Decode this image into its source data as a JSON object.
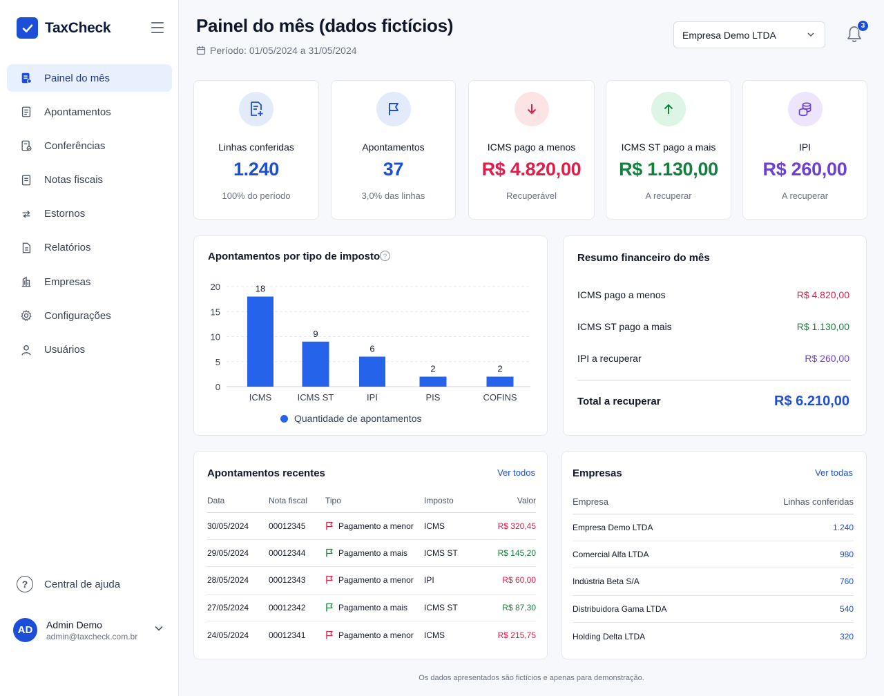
{
  "app": {
    "name": "TaxCheck"
  },
  "sidebar": {
    "items": [
      {
        "label": "Painel do mês",
        "icon": "dashboard-doc-icon",
        "active": true
      },
      {
        "label": "Apontamentos",
        "icon": "document-icon"
      },
      {
        "label": "Conferências",
        "icon": "document-check-icon"
      },
      {
        "label": "Notas fiscais",
        "icon": "invoice-icon"
      },
      {
        "label": "Estornos",
        "icon": "reverse-arrows-icon"
      },
      {
        "label": "Relatórios",
        "icon": "report-icon"
      },
      {
        "label": "Empresas",
        "icon": "building-icon"
      },
      {
        "label": "Configurações",
        "icon": "gear-icon"
      },
      {
        "label": "Usuários",
        "icon": "user-icon"
      }
    ],
    "help": "Central de ajuda",
    "user": {
      "initials": "AD",
      "name": "Admin Demo",
      "email": "admin@taxcheck.com.br"
    }
  },
  "header": {
    "title": "Painel do mês (dados fictícios)",
    "period": "Período: 01/05/2024 a 31/05/2024",
    "company": "Empresa Demo LTDA",
    "notifications": "3"
  },
  "kpis": [
    {
      "label": "Linhas conferidas",
      "value": "1.240",
      "sub": "100% do período",
      "color": "#1d4ed8",
      "bg": "#e3ebfb",
      "icon": "document-add-icon"
    },
    {
      "label": "Apontamentos",
      "value": "37",
      "sub": "3,0% das linhas",
      "color": "#1d4ed8",
      "bg": "#e3ebfb",
      "icon": "flag-icon"
    },
    {
      "label": "ICMS pago a menos",
      "value": "R$ 4.820,00",
      "sub": "Recuperável",
      "color": "#e11d48",
      "bg": "#fde4e4",
      "icon": "arrow-down-icon"
    },
    {
      "label": "ICMS ST pago a mais",
      "value": "R$ 1.130,00",
      "sub": "A recuperar",
      "color": "#15803d",
      "bg": "#dcf5e4",
      "icon": "arrow-up-icon"
    },
    {
      "label": "IPI",
      "value": "R$ 260,00",
      "sub": "A recuperar",
      "color": "#6d3fd8",
      "bg": "#ece5fb",
      "icon": "coins-icon"
    }
  ],
  "chart_card": {
    "title": "Apontamentos por tipo de imposto"
  },
  "chart_data": {
    "type": "bar",
    "categories": [
      "ICMS",
      "ICMS ST",
      "IPI",
      "PIS",
      "COFINS"
    ],
    "series": [
      {
        "name": "Quantidade de apontamentos",
        "values": [
          18,
          9,
          6,
          2,
          2
        ]
      }
    ],
    "ylim": [
      0,
      20
    ],
    "yticks": [
      0,
      5,
      10,
      15,
      20
    ],
    "grid": true,
    "legend": "bottom",
    "color": "#2563eb"
  },
  "summary": {
    "title": "Resumo financeiro do mês",
    "rows": [
      {
        "label": "ICMS pago a menos",
        "value": "R$ 4.820,00",
        "color": "#e11d48"
      },
      {
        "label": "ICMS ST pago a mais",
        "value": "R$ 1.130,00",
        "color": "#15803d"
      },
      {
        "label": "IPI a recuperar",
        "value": "R$ 260,00",
        "color": "#6d3fd8"
      }
    ],
    "total_label": "Total a recuperar",
    "total_value": "R$ 6.210,00"
  },
  "recent": {
    "title": "Apontamentos recentes",
    "see_all": "Ver todos",
    "columns": [
      "Data",
      "Nota fiscal",
      "Tipo",
      "Imposto",
      "Valor"
    ],
    "rows": [
      {
        "date": "30/05/2024",
        "nf": "00012345",
        "type": "Pagamento a menor",
        "tax": "ICMS",
        "value": "R$ 320,45",
        "kind": "menor"
      },
      {
        "date": "29/05/2024",
        "nf": "00012344",
        "type": "Pagamento a mais",
        "tax": "ICMS ST",
        "value": "R$ 145,20",
        "kind": "mais"
      },
      {
        "date": "28/05/2024",
        "nf": "00012343",
        "type": "Pagamento a menor",
        "tax": "IPI",
        "value": "R$ 60,00",
        "kind": "menor"
      },
      {
        "date": "27/05/2024",
        "nf": "00012342",
        "type": "Pagamento a mais",
        "tax": "ICMS ST",
        "value": "R$ 87,30",
        "kind": "mais"
      },
      {
        "date": "24/05/2024",
        "nf": "00012341",
        "type": "Pagamento a menor",
        "tax": "ICMS",
        "value": "R$ 215,75",
        "kind": "menor"
      }
    ]
  },
  "companies": {
    "title": "Empresas",
    "see_all": "Ver todas",
    "columns": [
      "Empresa",
      "Linhas conferidas"
    ],
    "rows": [
      {
        "name": "Empresa Demo LTDA",
        "lines": "1.240"
      },
      {
        "name": "Comercial Alfa LTDA",
        "lines": "980"
      },
      {
        "name": "Indústria Beta S/A",
        "lines": "760"
      },
      {
        "name": "Distribuidora Gama LTDA",
        "lines": "540"
      },
      {
        "name": "Holding Delta LTDA",
        "lines": "320"
      }
    ]
  },
  "footer": "Os dados apresentados são fictícios e apenas para demonstração."
}
